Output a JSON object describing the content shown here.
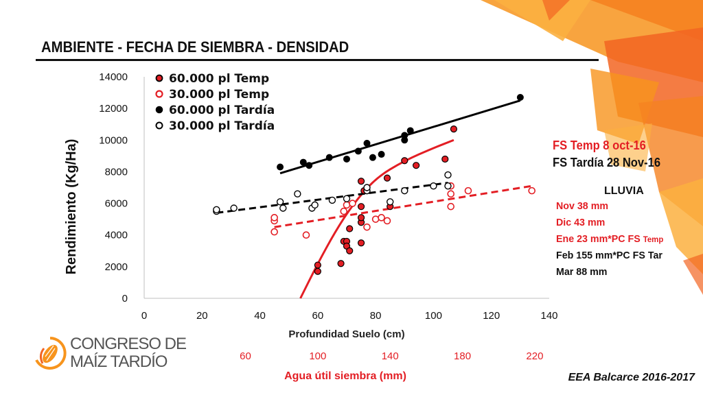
{
  "header": {
    "title": "AMBIENTE - FECHA DE SIEMBRA - DENSIDAD"
  },
  "sowing_dates": {
    "temp": "FS Temp 8 oct-16",
    "tardia": "FS Tardía 28 Nov-16"
  },
  "rainfall": {
    "title": "LLUVIA",
    "rows": [
      {
        "text": "Nov 38 mm",
        "sub": "",
        "color": "#e31e24"
      },
      {
        "text": "Dic  43 mm",
        "sub": "",
        "color": "#e31e24"
      },
      {
        "text": "Ene 23 mm*PC FS ",
        "sub": "Temp",
        "color": "#e31e24"
      },
      {
        "text": "Feb 155 mm*PC FS Tar",
        "sub": "",
        "color": "#111111"
      },
      {
        "text": "Mar 88 mm",
        "sub": "",
        "color": "#111111"
      }
    ]
  },
  "footer": {
    "source": "EEA Balcarce 2016-2017"
  },
  "logo": {
    "line1": "CONGRESO DE",
    "line2": "MAÍZ TARDÍO",
    "icon": "corn-cob-icon"
  },
  "colors": {
    "red": "#e31e24",
    "black": "#000000",
    "orange": "#f7941d"
  },
  "chart_data": {
    "type": "scatter",
    "xlabel": "Profundidad Suelo (cm)",
    "ylabel": "Rendimiento (Kg/Ha)",
    "xlim": [
      0,
      140
    ],
    "ylim": [
      0,
      14000
    ],
    "xticks": [
      "0",
      "20",
      "40",
      "60",
      "80",
      "100",
      "120",
      "140"
    ],
    "yticks": [
      "0",
      "2000",
      "4000",
      "6000",
      "8000",
      "10000",
      "12000",
      "14000"
    ],
    "secondary_axis": {
      "label": "Agua útil siembra (mm)",
      "ticks": [
        "60",
        "100",
        "140",
        "180",
        "220"
      ],
      "tick_positions_x": [
        35,
        60,
        85,
        110,
        135
      ]
    },
    "grid": false,
    "legend_position": "top-left",
    "series": [
      {
        "name": "60.000 pl Temp",
        "marker": "filled-red",
        "points": [
          [
            60,
            2100
          ],
          [
            60,
            1700
          ],
          [
            68,
            2200
          ],
          [
            69,
            3600
          ],
          [
            70,
            3600
          ],
          [
            70,
            3300
          ],
          [
            71,
            3000
          ],
          [
            71,
            4400
          ],
          [
            75,
            3500
          ],
          [
            75,
            4800
          ],
          [
            75,
            5100
          ],
          [
            75,
            5800
          ],
          [
            75,
            7400
          ],
          [
            76,
            6800
          ],
          [
            84,
            7600
          ],
          [
            85,
            5800
          ],
          [
            90,
            8700
          ],
          [
            94,
            8400
          ],
          [
            104,
            8800
          ],
          [
            107,
            10700
          ]
        ],
        "trend": {
          "kind": "curve",
          "points": [
            [
              54,
              0
            ],
            [
              60,
              2200
            ],
            [
              66,
              4200
            ],
            [
              72,
              5900
            ],
            [
              80,
              7600
            ],
            [
              90,
              8700
            ],
            [
              100,
              9500
            ],
            [
              107,
              10000
            ]
          ]
        }
      },
      {
        "name": "30.000 pl Temp",
        "marker": "open-red",
        "points": [
          [
            45,
            4200
          ],
          [
            45,
            4900
          ],
          [
            45,
            5100
          ],
          [
            56,
            4000
          ],
          [
            69,
            5500
          ],
          [
            70,
            5900
          ],
          [
            72,
            6000
          ],
          [
            77,
            4500
          ],
          [
            80,
            5000
          ],
          [
            82,
            5100
          ],
          [
            84,
            4900
          ],
          [
            106,
            7100
          ],
          [
            106,
            6600
          ],
          [
            106,
            5800
          ],
          [
            112,
            6800
          ],
          [
            134,
            6800
          ]
        ],
        "trend": {
          "kind": "line",
          "points": [
            [
              45,
              4500
            ],
            [
              134,
              7100
            ]
          ]
        }
      },
      {
        "name": "60.000 pl Tardía",
        "marker": "filled-black",
        "points": [
          [
            47,
            8300
          ],
          [
            55,
            8600
          ],
          [
            57,
            8400
          ],
          [
            64,
            8900
          ],
          [
            70,
            8800
          ],
          [
            74,
            9300
          ],
          [
            77,
            9800
          ],
          [
            79,
            8900
          ],
          [
            82,
            9100
          ],
          [
            90,
            10000
          ],
          [
            90,
            10300
          ],
          [
            92,
            10600
          ],
          [
            130,
            12700
          ]
        ],
        "trend": {
          "kind": "line",
          "points": [
            [
              47,
              7900
            ],
            [
              130,
              12500
            ]
          ]
        }
      },
      {
        "name": "30.000 pl Tardía",
        "marker": "open-black",
        "points": [
          [
            25,
            5500
          ],
          [
            25,
            5600
          ],
          [
            31,
            5700
          ],
          [
            47,
            6100
          ],
          [
            48,
            5700
          ],
          [
            53,
            6600
          ],
          [
            58,
            5700
          ],
          [
            59,
            5900
          ],
          [
            65,
            6200
          ],
          [
            70,
            6300
          ],
          [
            77,
            6800
          ],
          [
            77,
            7000
          ],
          [
            85,
            6100
          ],
          [
            90,
            6800
          ],
          [
            100,
            7100
          ],
          [
            105,
            7800
          ],
          [
            105,
            7100
          ]
        ],
        "trend": {
          "kind": "line",
          "points": [
            [
              25,
              5400
            ],
            [
              105,
              7300
            ]
          ]
        }
      }
    ]
  }
}
